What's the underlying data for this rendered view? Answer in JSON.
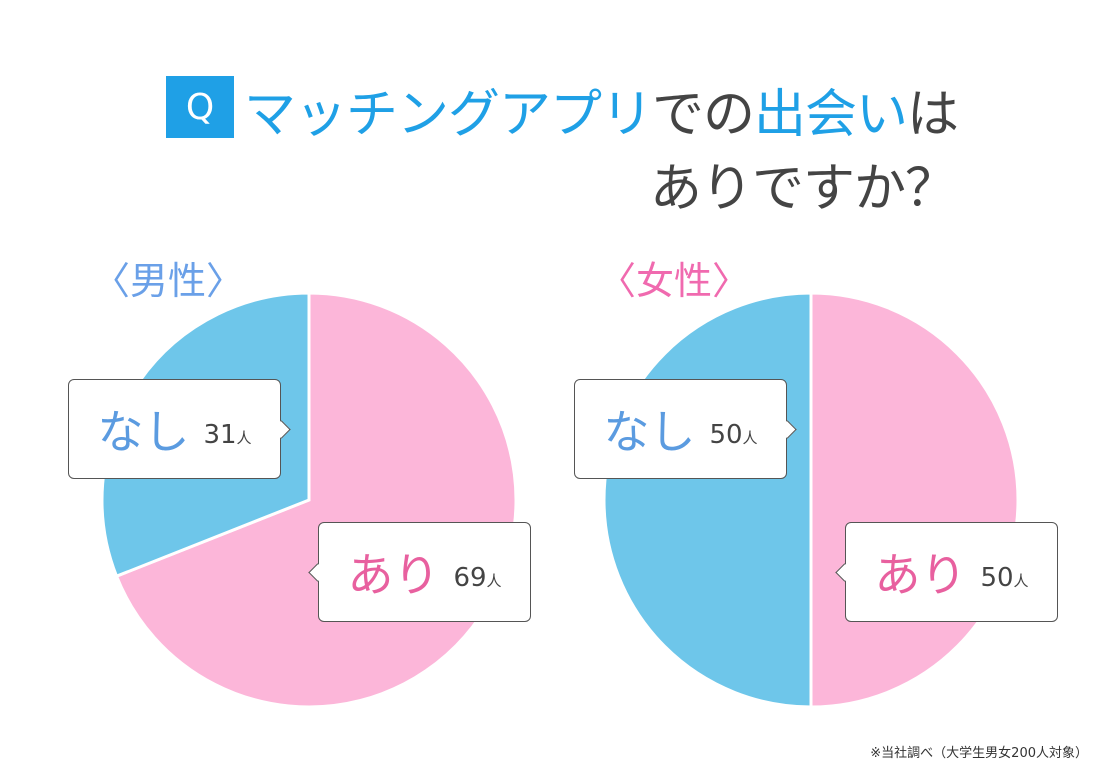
{
  "title": {
    "q": "Q",
    "part1_hl": "マッチングアプリ",
    "part2": "での",
    "part3_hl": "出会い",
    "part4": "は",
    "line2": "ありですか？"
  },
  "colors": {
    "ari": "#fcb6d9",
    "nashi": "#6ec6ea",
    "accent": "#1fa0e6",
    "male_label": "#6aa0e8",
    "female_label": "#f06aaf"
  },
  "chart_data": [
    {
      "type": "pie",
      "title": "〈男性〉",
      "unit": "人",
      "slices": [
        {
          "label": "あり",
          "value": 69
        },
        {
          "label": "なし",
          "value": 31
        }
      ]
    },
    {
      "type": "pie",
      "title": "〈女性〉",
      "unit": "人",
      "slices": [
        {
          "label": "あり",
          "value": 50
        },
        {
          "label": "なし",
          "value": 50
        }
      ]
    }
  ],
  "footnote": "※当社調べ（大学生男女200人対象）"
}
